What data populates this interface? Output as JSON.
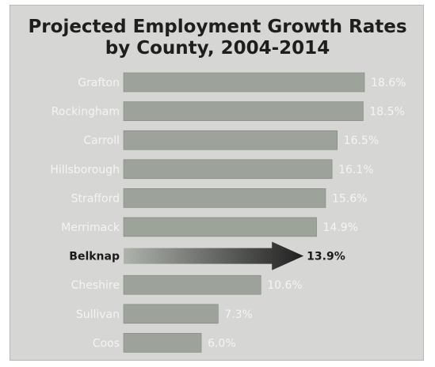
{
  "chart_data": {
    "type": "bar",
    "orientation": "horizontal",
    "title": "Projected Employment Growth Rates\nby County, 2004-2014",
    "title_lines": [
      "Projected Employment Growth Rates",
      "by County, 2004-2014"
    ],
    "categories": [
      "Grafton",
      "Rockingham",
      "Carroll",
      "Hillsborough",
      "Strafford",
      "Merrimack",
      "Belknap",
      "Cheshire",
      "Sullivan",
      "Coos"
    ],
    "values": [
      18.6,
      18.5,
      16.5,
      16.1,
      15.6,
      14.9,
      13.9,
      10.6,
      7.3,
      6.0
    ],
    "value_labels": [
      "18.6%",
      "18.5%",
      "16.5%",
      "16.1%",
      "15.6%",
      "14.9%",
      "13.9%",
      "10.6%",
      "7.3%",
      "6.0%"
    ],
    "highlight_category": "Belknap",
    "highlight_style": "arrow",
    "xlim": [
      0,
      18.6
    ],
    "grid": false,
    "legend": "none",
    "colors": {
      "background": "#d6d6d4",
      "bar": "#9da39b",
      "bar_edge": "#7f857d",
      "label_text": "#f4f4f2",
      "highlight_text": "#1a1a1a",
      "highlight_gradient_start": "#aeb3ac",
      "highlight_gradient_end": "#202020"
    }
  }
}
